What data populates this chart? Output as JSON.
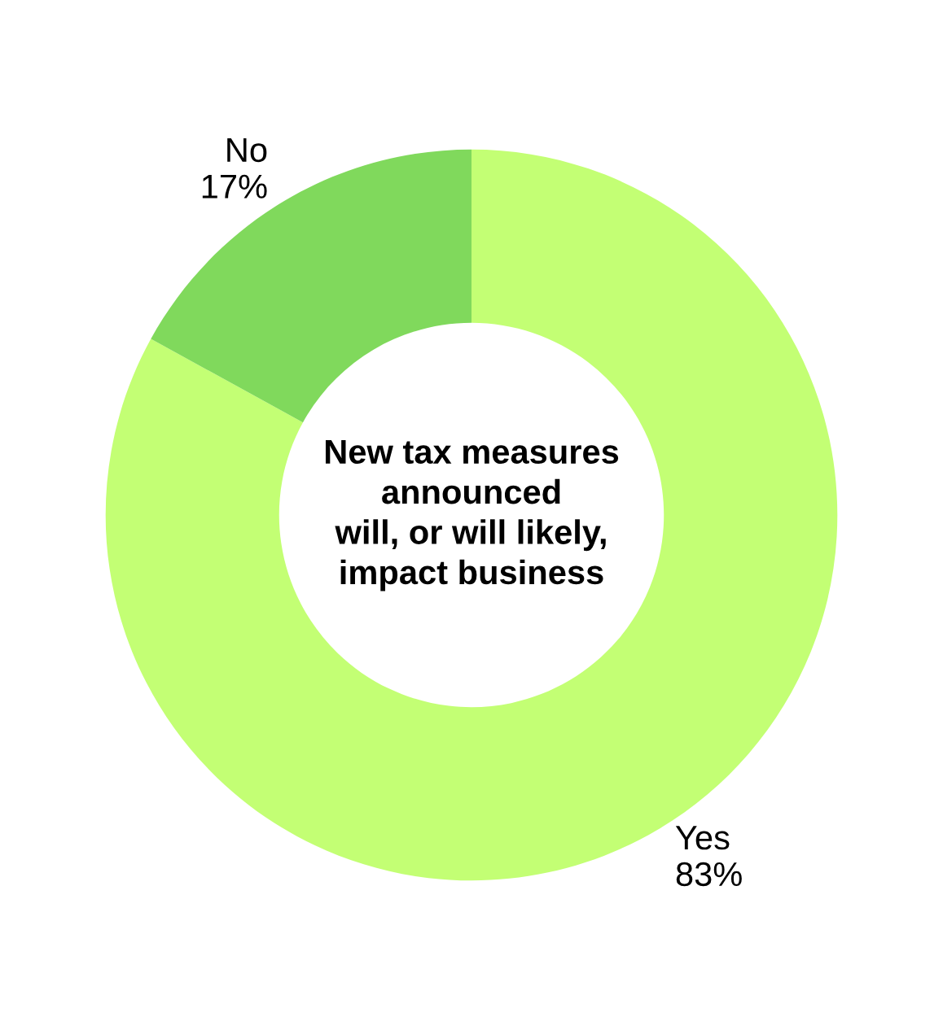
{
  "chart_data": {
    "type": "donut",
    "title": "New tax measures\nannounced\nwill, or will likely,\nimpact business",
    "categories": [
      "Yes",
      "No"
    ],
    "values": [
      83,
      17
    ],
    "colors": [
      "#c3ff74",
      "#80d95c"
    ],
    "value_labels": [
      "83%",
      "17%"
    ],
    "legend": false
  }
}
